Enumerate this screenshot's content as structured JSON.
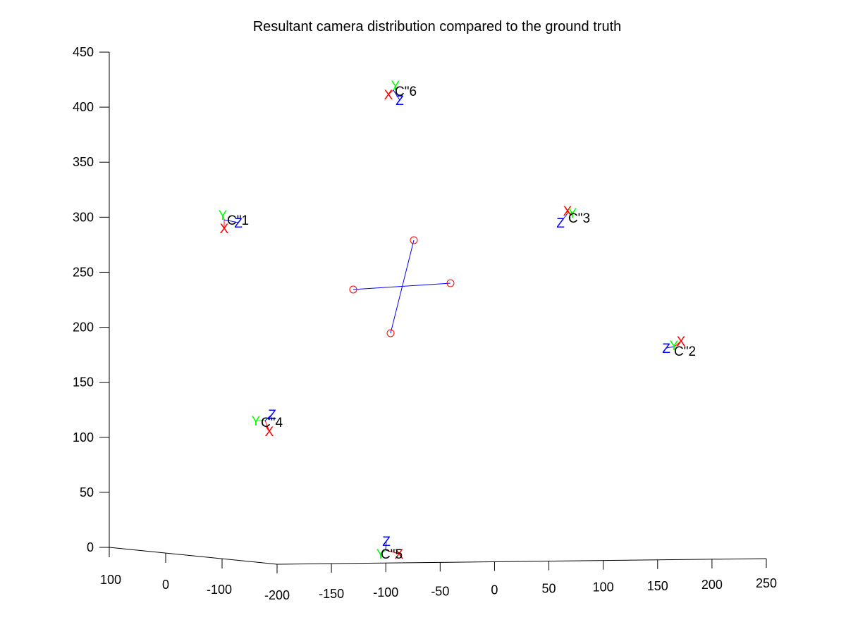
{
  "chart_data": {
    "type": "scatter",
    "title": "Resultant camera distribution compared to the ground truth",
    "xlabel": "",
    "ylabel": "",
    "grid": false,
    "axes": {
      "vertical": {
        "range": [
          0,
          450
        ],
        "ticks": [
          "0",
          "50",
          "100",
          "150",
          "200",
          "250",
          "300",
          "350",
          "400",
          "450"
        ]
      },
      "depth": {
        "ticks": [
          "100",
          "0",
          "-100"
        ]
      },
      "horizontal": {
        "ticks": [
          "-200",
          "-150",
          "-100",
          "-50",
          "0",
          "50",
          "100",
          "150",
          "200",
          "250"
        ]
      }
    },
    "cameras": [
      {
        "label": "C\"1",
        "axes": [
          "X",
          "Y",
          "Z"
        ],
        "position": [
          -100,
          300
        ]
      },
      {
        "label": "C\"2",
        "axes": [
          "X",
          "Y",
          "Z"
        ],
        "position": [
          170,
          180
        ]
      },
      {
        "label": "C\"3",
        "axes": [
          "X",
          "Y",
          "Z"
        ],
        "position": [
          70,
          300
        ]
      },
      {
        "label": "C\"4",
        "axes": [
          "X",
          "Y",
          "Z"
        ],
        "position": [
          -80,
          113
        ]
      },
      {
        "label": "C\"5",
        "axes": [
          "X",
          "Y",
          "Z"
        ],
        "position": [
          -105,
          -2
        ]
      },
      {
        "label": "C\"6",
        "axes": [
          "X",
          "Y",
          "Z"
        ],
        "position": [
          -95,
          415
        ]
      }
    ],
    "ground_truth_cross": {
      "markers": [
        "o",
        "o",
        "o",
        "o"
      ]
    },
    "colors": {
      "X": "#ff0000",
      "Y": "#00ff00",
      "Z": "#0000ff",
      "label": "#000000",
      "cross_line": "#0000ff",
      "cross_marker": "#ff0000",
      "axis": "#000000"
    }
  }
}
